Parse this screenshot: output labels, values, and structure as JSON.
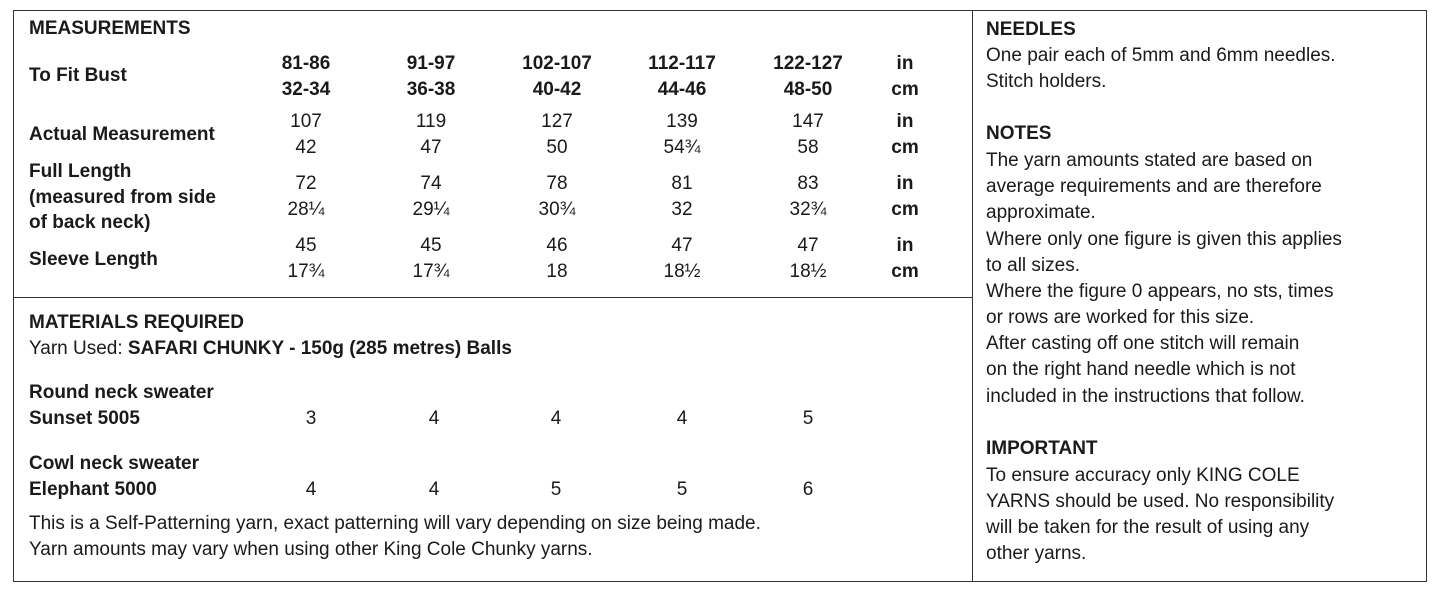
{
  "measurements": {
    "heading": "MEASUREMENTS",
    "bust": {
      "label": "To Fit Bust",
      "sizes": [
        {
          "in": "81-86",
          "cm": "32-34"
        },
        {
          "in": "91-97",
          "cm": "36-38"
        },
        {
          "in": "102-107",
          "cm": "40-42"
        },
        {
          "in": "112-117",
          "cm": "44-46"
        },
        {
          "in": "122-127",
          "cm": "48-50"
        }
      ],
      "unit_top": "in",
      "unit_bottom": "cm"
    },
    "actual": {
      "label": "Actual Measurement",
      "top": [
        "107",
        "119",
        "127",
        "139",
        "147"
      ],
      "bottom": [
        "42",
        "47",
        "50",
        "54¾",
        "58"
      ],
      "unit_top": "in",
      "unit_bottom": "cm"
    },
    "full_length": {
      "label_line1": "Full Length",
      "label_line2": "(measured from side",
      "label_line3": "of back neck)",
      "top": [
        "72",
        "74",
        "78",
        "81",
        "83"
      ],
      "bottom": [
        "28¼",
        "29¼",
        "30¾",
        "32",
        "32¾"
      ],
      "unit_top": "in",
      "unit_bottom": "cm"
    },
    "sleeve": {
      "label": "Sleeve Length",
      "top": [
        "45",
        "45",
        "46",
        "47",
        "47"
      ],
      "bottom": [
        "17¾",
        "17¾",
        "18",
        "18½",
        "18½"
      ],
      "unit_top": "in",
      "unit_bottom": "cm"
    }
  },
  "materials": {
    "heading": "MATERIALS REQUIRED",
    "yarn_prefix": "Yarn Used: ",
    "yarn_name": "SAFARI CHUNKY - 150g (285 metres) Balls",
    "round": {
      "line1": "Round neck sweater",
      "line2": "Sunset 5005",
      "values": [
        "3",
        "4",
        "4",
        "4",
        "5"
      ]
    },
    "cowl": {
      "line1": "Cowl neck sweater",
      "line2": "Elephant 5000",
      "values": [
        "4",
        "4",
        "5",
        "5",
        "6"
      ]
    },
    "note_line1": "This is a Self-Patterning yarn, exact patterning will vary depending on size being made.",
    "note_line2": "Yarn amounts may vary when using other King Cole Chunky yarns."
  },
  "needles": {
    "heading": "NEEDLES",
    "line1": "One pair each of 5mm and 6mm needles.",
    "line2": "Stitch holders."
  },
  "notes": {
    "heading": "NOTES",
    "lines": [
      "The yarn amounts stated are based on",
      "average requirements and are therefore",
      "approximate.",
      "Where only one figure is given this applies",
      "to all sizes.",
      "Where the figure 0 appears, no sts, times",
      "or rows are worked for this size.",
      "After casting off one stitch will remain",
      "on the right hand needle which is not",
      "included in the instructions that follow."
    ]
  },
  "important": {
    "heading": "IMPORTANT",
    "lines": [
      "To ensure accuracy only KING COLE",
      "YARNS should be used. No responsibility",
      "will be taken for the result of using any",
      "other yarns."
    ]
  }
}
